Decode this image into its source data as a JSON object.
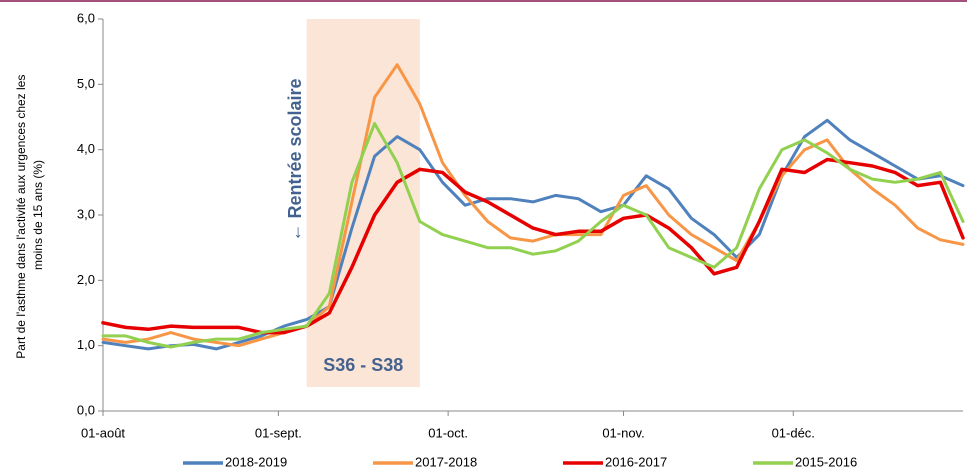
{
  "chart_data": {
    "type": "line",
    "ylabel": [
      "Part de l'asthme dans l'activité  aux urgences chez les",
      "moins de 15 ans (%)"
    ],
    "annotations": {
      "event": "← Rentrée scolaire",
      "span": "S36 - S38"
    },
    "highlight_span": [
      36,
      56
    ],
    "x": [
      0,
      4,
      8,
      12,
      16,
      20,
      24,
      28,
      32,
      36,
      40,
      44,
      48,
      52,
      56,
      60,
      64,
      68,
      72,
      76,
      80,
      84,
      88,
      92,
      96,
      100,
      104,
      108,
      112,
      116,
      120,
      124,
      128,
      132,
      136,
      140,
      144,
      148,
      152
    ],
    "xlim": [
      0,
      152
    ],
    "xticks": [
      {
        "value": 0,
        "label": "01-août"
      },
      {
        "value": 31,
        "label": "01-sept."
      },
      {
        "value": 61,
        "label": "01-oct."
      },
      {
        "value": 92,
        "label": "01-nov."
      },
      {
        "value": 122,
        "label": "01-déc."
      }
    ],
    "ylim": [
      0,
      6
    ],
    "yticks": [
      {
        "value": 0,
        "label": "0,0"
      },
      {
        "value": 1,
        "label": "1,0"
      },
      {
        "value": 2,
        "label": "2,0"
      },
      {
        "value": 3,
        "label": "3,0"
      },
      {
        "value": 4,
        "label": "4,0"
      },
      {
        "value": 5,
        "label": "5,0"
      },
      {
        "value": 6,
        "label": "6,0"
      }
    ],
    "grid": false,
    "legend": "bottom",
    "series": [
      {
        "name": "2018-2019",
        "color": "#4f81bd",
        "values": [
          1.05,
          1.0,
          0.95,
          1.0,
          1.02,
          0.95,
          1.05,
          1.15,
          1.3,
          1.4,
          1.6,
          2.8,
          3.9,
          4.2,
          4.0,
          3.5,
          3.15,
          3.25,
          3.25,
          3.2,
          3.3,
          3.25,
          3.05,
          3.15,
          3.6,
          3.4,
          2.95,
          2.7,
          2.35,
          2.7,
          3.6,
          4.2,
          4.45,
          4.15,
          3.95,
          3.75,
          3.55,
          3.6,
          3.45
        ]
      },
      {
        "name": "2017-2018",
        "color": "#f79646",
        "values": [
          1.1,
          1.05,
          1.1,
          1.2,
          1.1,
          1.05,
          1.0,
          1.1,
          1.2,
          1.3,
          1.6,
          3.2,
          4.8,
          5.3,
          4.7,
          3.8,
          3.3,
          2.9,
          2.65,
          2.6,
          2.7,
          2.7,
          2.7,
          3.3,
          3.45,
          3.0,
          2.7,
          2.5,
          2.3,
          2.9,
          3.6,
          4.0,
          4.15,
          3.7,
          3.4,
          3.15,
          2.8,
          2.62,
          2.55
        ]
      },
      {
        "name": "2016-2017",
        "color": "#e60000",
        "values": [
          1.35,
          1.28,
          1.25,
          1.3,
          1.28,
          1.28,
          1.28,
          1.2,
          1.2,
          1.3,
          1.5,
          2.2,
          3.0,
          3.5,
          3.7,
          3.65,
          3.35,
          3.2,
          3.0,
          2.8,
          2.7,
          2.75,
          2.75,
          2.95,
          3.0,
          2.8,
          2.5,
          2.1,
          2.2,
          2.9,
          3.7,
          3.65,
          3.85,
          3.8,
          3.75,
          3.65,
          3.45,
          3.5,
          2.65
        ]
      },
      {
        "name": "2015-2016",
        "color": "#92d050",
        "values": [
          1.15,
          1.15,
          1.05,
          0.98,
          1.05,
          1.1,
          1.1,
          1.2,
          1.25,
          1.3,
          1.8,
          3.5,
          4.4,
          3.8,
          2.9,
          2.7,
          2.6,
          2.5,
          2.5,
          2.4,
          2.45,
          2.6,
          2.9,
          3.15,
          3.0,
          2.5,
          2.35,
          2.2,
          2.5,
          3.4,
          4.0,
          4.15,
          3.95,
          3.7,
          3.55,
          3.5,
          3.55,
          3.65,
          2.9
        ]
      }
    ]
  }
}
